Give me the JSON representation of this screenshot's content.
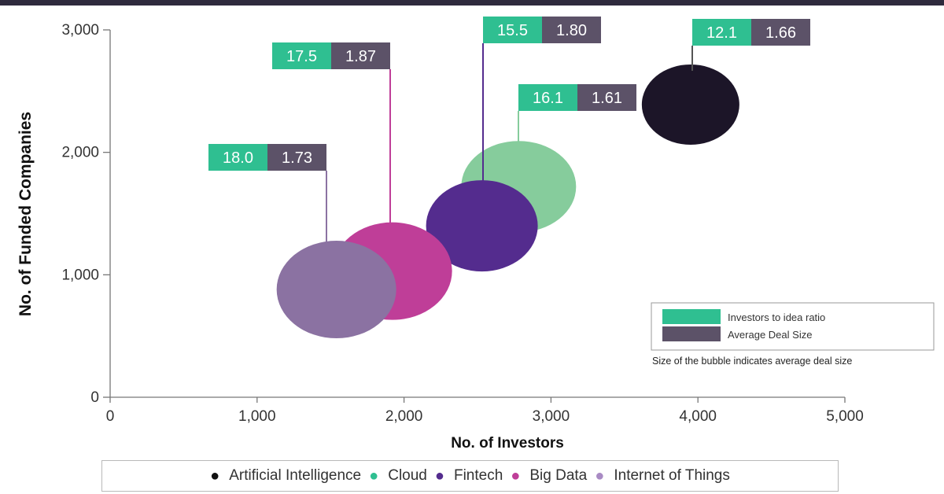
{
  "chart_data": {
    "type": "scatter",
    "xlabel": "No. of Investors",
    "ylabel": "No. of Funded Companies",
    "xlim": [
      0,
      5000
    ],
    "ylim": [
      0,
      3000
    ],
    "x_ticks": [
      "0",
      "1,000",
      "2,000",
      "3,000",
      "4,000",
      "5,000"
    ],
    "y_ticks": [
      "0",
      "1,000",
      "2,000",
      "3,000"
    ],
    "series": [
      {
        "name": "Artificial Intelligence",
        "x": 3950,
        "y": 2390,
        "ratio": "12.1",
        "deal": "1.66",
        "color": "#1c1528"
      },
      {
        "name": "Cloud",
        "x": 2780,
        "y": 1720,
        "ratio": "16.1",
        "deal": "1.61",
        "color": "#86cc9c"
      },
      {
        "name": "Fintech",
        "x": 2530,
        "y": 1400,
        "ratio": "15.5",
        "deal": "1.80",
        "color": "#542c8e"
      },
      {
        "name": "Big Data",
        "x": 1920,
        "y": 1030,
        "ratio": "17.5",
        "deal": "1.87",
        "color": "#bf3e98"
      },
      {
        "name": "Internet of Things",
        "x": 1540,
        "y": 880,
        "ratio": "18.0",
        "deal": "1.73",
        "color": "#8b72a2"
      }
    ],
    "label_legend": {
      "ratio_label": "Investors to idea ratio",
      "deal_label": "Average Deal Size",
      "note": "Size of the bubble indicates average deal size",
      "ratio_color": "#2fbf91",
      "deal_color": "#5c5268"
    },
    "legend_dot_colors": [
      "#111111",
      "#2fbf91",
      "#542c8e",
      "#bf3e98",
      "#a98bc4"
    ]
  }
}
